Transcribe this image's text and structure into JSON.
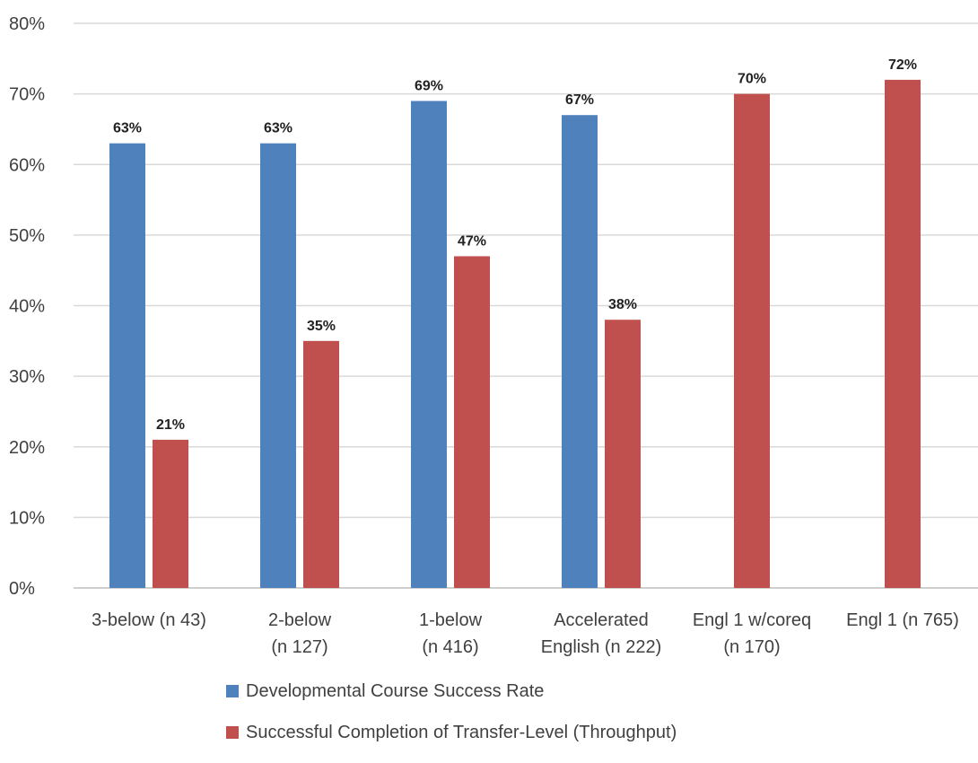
{
  "chart_data": {
    "type": "bar",
    "categories": [
      [
        "3-below (n 43)"
      ],
      [
        "2-below",
        "(n 127)"
      ],
      [
        "1-below",
        "(n 416)"
      ],
      [
        "Accelerated",
        "English (n 222)"
      ],
      [
        "Engl 1 w/coreq",
        "(n 170)"
      ],
      [
        "Engl 1 (n 765)"
      ]
    ],
    "series": [
      {
        "name": "Developmental Course Success Rate",
        "color": "#4f81bd",
        "values": [
          63,
          63,
          69,
          67,
          null,
          null
        ],
        "labels": [
          "63%",
          "63%",
          "69%",
          "67%",
          "",
          ""
        ]
      },
      {
        "name": "Successful Completion of Transfer-Level (Throughput)",
        "color": "#c0504d",
        "values": [
          21,
          35,
          47,
          38,
          70,
          72
        ],
        "labels": [
          "21%",
          "35%",
          "47%",
          "38%",
          "70%",
          "72%"
        ]
      }
    ],
    "ylim": [
      0,
      80
    ],
    "yticks": [
      "0%",
      "10%",
      "20%",
      "30%",
      "40%",
      "50%",
      "60%",
      "70%",
      "80%"
    ],
    "grid": true,
    "legend_position": "bottom"
  }
}
